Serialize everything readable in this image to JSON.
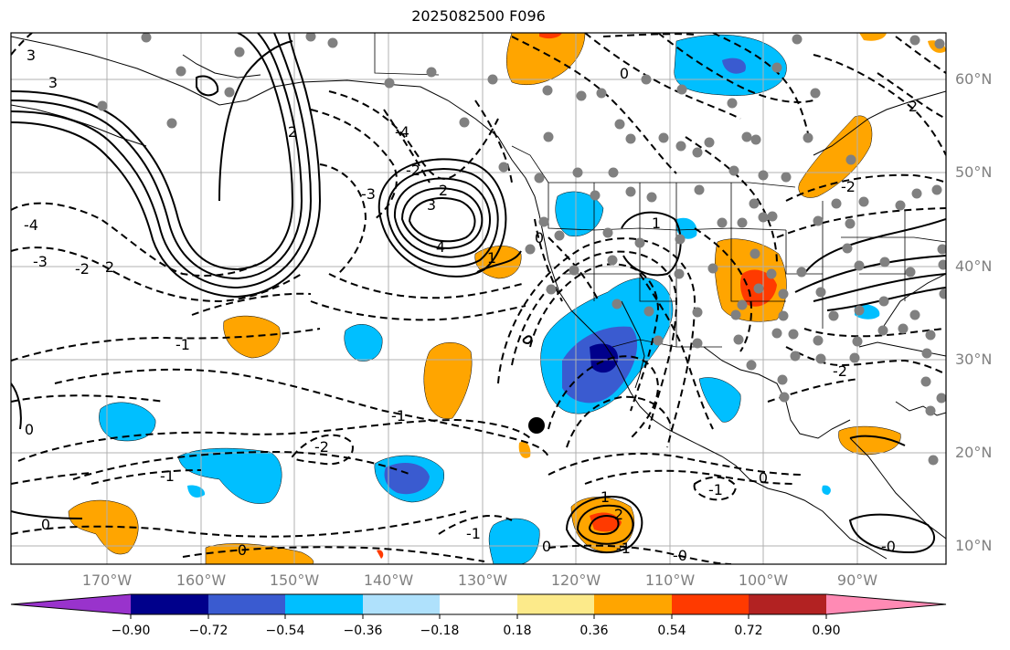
{
  "title": "2025082500 F096",
  "latitude_labels": [
    "60°N",
    "50°N",
    "40°N",
    "30°N",
    "20°N",
    "10°N"
  ],
  "longitude_labels": [
    "170°W",
    "160°W",
    "150°W",
    "140°W",
    "130°W",
    "120°W",
    "110°W",
    "100°W",
    "90°W"
  ],
  "colorbar": {
    "ticks": [
      "−0.90",
      "−0.72",
      "−0.54",
      "−0.36",
      "−0.18",
      "0.18",
      "0.36",
      "0.54",
      "0.72",
      "0.90"
    ],
    "colors": [
      "#9933cc",
      "#00008b",
      "#3a5bd0",
      "#00bfff",
      "#afe1fc",
      "#ffffff",
      "#fcea8a",
      "#ffa500",
      "#ff3a00",
      "#b22222",
      "#ff8ab4"
    ]
  },
  "contour_labels": [
    {
      "text": "3"
    },
    {
      "text": "3"
    },
    {
      "text": "-4"
    },
    {
      "text": "-3"
    },
    {
      "text": "-2"
    },
    {
      "text": "2"
    },
    {
      "text": "2"
    },
    {
      "text": "-4"
    },
    {
      "text": "-3"
    },
    {
      "text": "-2"
    },
    {
      "text": "4"
    },
    {
      "text": "3"
    },
    {
      "text": "2"
    },
    {
      "text": "-1"
    },
    {
      "text": "1"
    },
    {
      "text": "-1"
    },
    {
      "text": "-2"
    },
    {
      "text": "-1"
    },
    {
      "text": "0"
    },
    {
      "text": "0"
    },
    {
      "text": "-1"
    },
    {
      "text": "0"
    },
    {
      "text": "2"
    },
    {
      "text": "1"
    },
    {
      "text": "-1"
    },
    {
      "text": "0"
    },
    {
      "text": "0"
    },
    {
      "text": "-1"
    },
    {
      "text": "-0"
    },
    {
      "text": "2"
    },
    {
      "text": "-2"
    },
    {
      "text": "0"
    },
    {
      "text": "-0"
    },
    {
      "text": "1"
    },
    {
      "text": "-2"
    },
    {
      "text": "0"
    }
  ],
  "colors": {
    "grid": "#b0b0b0",
    "border": "#000000",
    "station_dot": "#808080",
    "center_dot": "#000000"
  }
}
